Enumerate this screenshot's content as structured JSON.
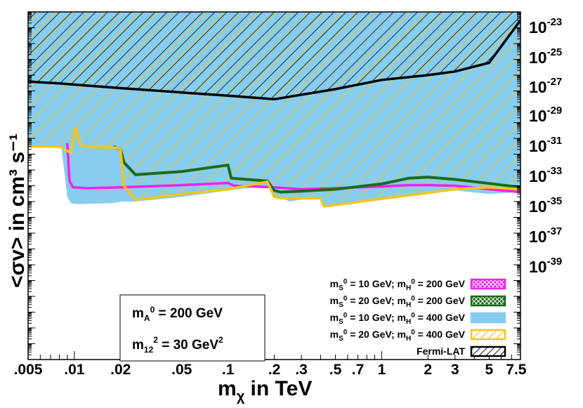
{
  "chart_data": {
    "type": "line",
    "xlabel": "m",
    "xlabel_sub": "χ",
    "xlabel_suffix": "in TeV",
    "ylabel": "<σv> in cm³ s⁻¹",
    "x_scale": "log",
    "y_scale": "log",
    "xlim": [
      0.005,
      8
    ],
    "ylim": [
      1e-44,
      1e-22
    ],
    "x_ticks": [
      {
        "v": 0.005,
        "label": ".005"
      },
      {
        "v": 0.01,
        "label": ".01"
      },
      {
        "v": 0.02,
        "label": ".02"
      },
      {
        "v": 0.05,
        "label": ".05"
      },
      {
        "v": 0.1,
        "label": ".1"
      },
      {
        "v": 0.2,
        "label": ".2"
      },
      {
        "v": 0.3,
        "label": ".3"
      },
      {
        "v": 0.5,
        "label": ".5"
      },
      {
        "v": 0.7,
        "label": ".7"
      },
      {
        "v": 1,
        "label": "1"
      },
      {
        "v": 2,
        "label": "2"
      },
      {
        "v": 3,
        "label": "3"
      },
      {
        "v": 5,
        "label": "5"
      },
      {
        "v": 7.5,
        "label": "7.5"
      }
    ],
    "y_tick_labels": [
      {
        "exp": -23,
        "base": "10",
        "sup": "-23"
      },
      {
        "exp": -25,
        "base": "10",
        "sup": "-25"
      },
      {
        "exp": -27,
        "base": "10",
        "sup": "-27"
      },
      {
        "exp": -29,
        "base": "10",
        "sup": "-29"
      },
      {
        "exp": -31,
        "base": "10",
        "sup": "-31"
      },
      {
        "exp": -33,
        "base": "10",
        "sup": "-33"
      },
      {
        "exp": -35,
        "base": "10",
        "sup": "-35"
      },
      {
        "exp": -37,
        "base": "10",
        "sup": "-37"
      },
      {
        "exp": -39,
        "base": "10",
        "sup": "-39"
      }
    ],
    "annotation": {
      "line1_main": "m",
      "line1_sub": "A",
      "line1_sup": "0",
      "line1_rest": " = 200 GeV",
      "line2_main": "m",
      "line2_sub": "12",
      "line2_sup": "2",
      "line2_rest": " = 30 GeV",
      "line2_unit_sup": "2"
    },
    "legend": {
      "placement": "bottom-right",
      "entries": [
        {
          "text": "m_S⁰ = 10 GeV; m_H⁰ = 200 GeV",
          "main": "m",
          "sub1": "S",
          "sup1": "0",
          "mid": " = 10 GeV; m",
          "sub2": "H",
          "sup2": "0",
          "end": " = 200 GeV"
        },
        {
          "text": "m_S⁰ = 20 GeV; m_H⁰ = 200 GeV",
          "main": "m",
          "sub1": "S",
          "sup1": "0",
          "mid": " = 20 GeV; m",
          "sub2": "H",
          "sup2": "0",
          "end": " = 200 GeV"
        },
        {
          "text": "m_S⁰ = 10 GeV; m_H⁰ = 400 GeV",
          "main": "m",
          "sub1": "S",
          "sup1": "0",
          "mid": " = 10 GeV; m",
          "sub2": "H",
          "sup2": "0",
          "end": " = 400 GeV"
        },
        {
          "text": "m_S⁰ = 20 GeV; m_H⁰ = 400 GeV",
          "main": "m",
          "sub1": "S",
          "sup1": "0",
          "mid": " = 20 GeV; m",
          "sub2": "H",
          "sup2": "0",
          "end": " = 400 GeV"
        },
        {
          "text": "Fermi-LAT",
          "main": "Fermi-LAT"
        }
      ]
    },
    "series": [
      {
        "name": "m_S⁰ = 10 GeV; m_H⁰ = 400 GeV",
        "kind": "filled-band",
        "color": "#87cdf0",
        "x": [
          0.005,
          0.0082,
          0.009,
          0.0095,
          0.01,
          0.011,
          0.018,
          0.02,
          0.025,
          0.05,
          0.1,
          0.18,
          0.2,
          0.25,
          0.4,
          0.5,
          1,
          2,
          3,
          5,
          8
        ],
        "y": [
          3e-31,
          4e-31,
          2e-34,
          8e-35,
          7e-35,
          7e-35,
          8e-35,
          1e-34,
          1e-34,
          2e-34,
          5e-34,
          1e-33,
          3e-34,
          1e-34,
          2e-34,
          1.2e-34,
          2e-34,
          4e-34,
          5e-34,
          3e-34,
          4e-34
        ]
      },
      {
        "name": "m_S⁰ = 10 GeV; m_H⁰ = 200 GeV",
        "color": "#ee22ee",
        "x": [
          0.009,
          0.0093,
          0.0098,
          0.012,
          0.02,
          0.05,
          0.1,
          0.11,
          0.2,
          0.3,
          0.5,
          1,
          1.5,
          2,
          3,
          5,
          8
        ],
        "y": [
          5e-31,
          2e-33,
          8e-34,
          7e-34,
          8e-34,
          1.1e-33,
          1.5e-33,
          1e-33,
          8e-34,
          6e-34,
          7e-34,
          9e-34,
          1.1e-33,
          1.1e-33,
          1e-33,
          6e-34,
          4e-34
        ]
      },
      {
        "name": "m_S⁰ = 20 GeV; m_H⁰ = 200 GeV",
        "color": "#1a6b1a",
        "x": [
          0.018,
          0.02,
          0.021,
          0.025,
          0.05,
          0.095,
          0.1,
          0.105,
          0.18,
          0.2,
          0.22,
          0.3,
          0.5,
          1,
          1.5,
          2,
          3,
          5,
          8
        ],
        "y": [
          3e-31,
          2e-31,
          3e-32,
          5e-33,
          8e-33,
          1.9e-32,
          2e-32,
          3e-33,
          2e-33,
          5e-34,
          4e-34,
          4.5e-34,
          6e-34,
          1.3e-33,
          3e-33,
          3.5e-33,
          2.5e-33,
          1.4e-33,
          8e-34
        ]
      },
      {
        "name": "m_S⁰ = 20 GeV; m_H⁰ = 400 GeV",
        "kind": "hatched-region",
        "color": "#f5c518",
        "x": [
          0.005,
          0.008,
          0.0095,
          0.0102,
          0.0108,
          0.0115,
          0.019,
          0.02,
          0.021,
          0.025,
          0.05,
          0.1,
          0.18,
          0.2,
          0.22,
          0.3,
          0.4,
          0.42,
          0.5,
          1,
          2,
          3,
          5,
          8
        ],
        "y": [
          3e-31,
          3e-31,
          1.2e-31,
          5e-30,
          5e-31,
          3e-31,
          2.5e-31,
          2e-31,
          1e-33,
          1.3e-34,
          3e-34,
          6e-34,
          1.8e-33,
          2e-34,
          1.6e-34,
          1.6e-34,
          1.6e-34,
          5e-35,
          6e-35,
          1.5e-34,
          3.5e-34,
          6e-34,
          8e-34,
          6e-34
        ]
      },
      {
        "name": "Fermi-LAT",
        "kind": "hatched-region",
        "color": "#000000",
        "x": [
          0.005,
          0.006,
          0.008,
          0.01,
          0.02,
          0.05,
          0.1,
          0.2,
          0.5,
          1,
          2,
          3,
          5,
          8
        ],
        "y": [
          4e-27,
          3.5e-27,
          3e-27,
          2.5e-27,
          1.5e-27,
          8e-28,
          5e-28,
          3e-28,
          1.3e-27,
          5e-27,
          1e-26,
          1.7e-26,
          6e-26,
          3e-23
        ]
      }
    ],
    "colors": {
      "background": "#ffffff",
      "frame": "#000000"
    }
  }
}
